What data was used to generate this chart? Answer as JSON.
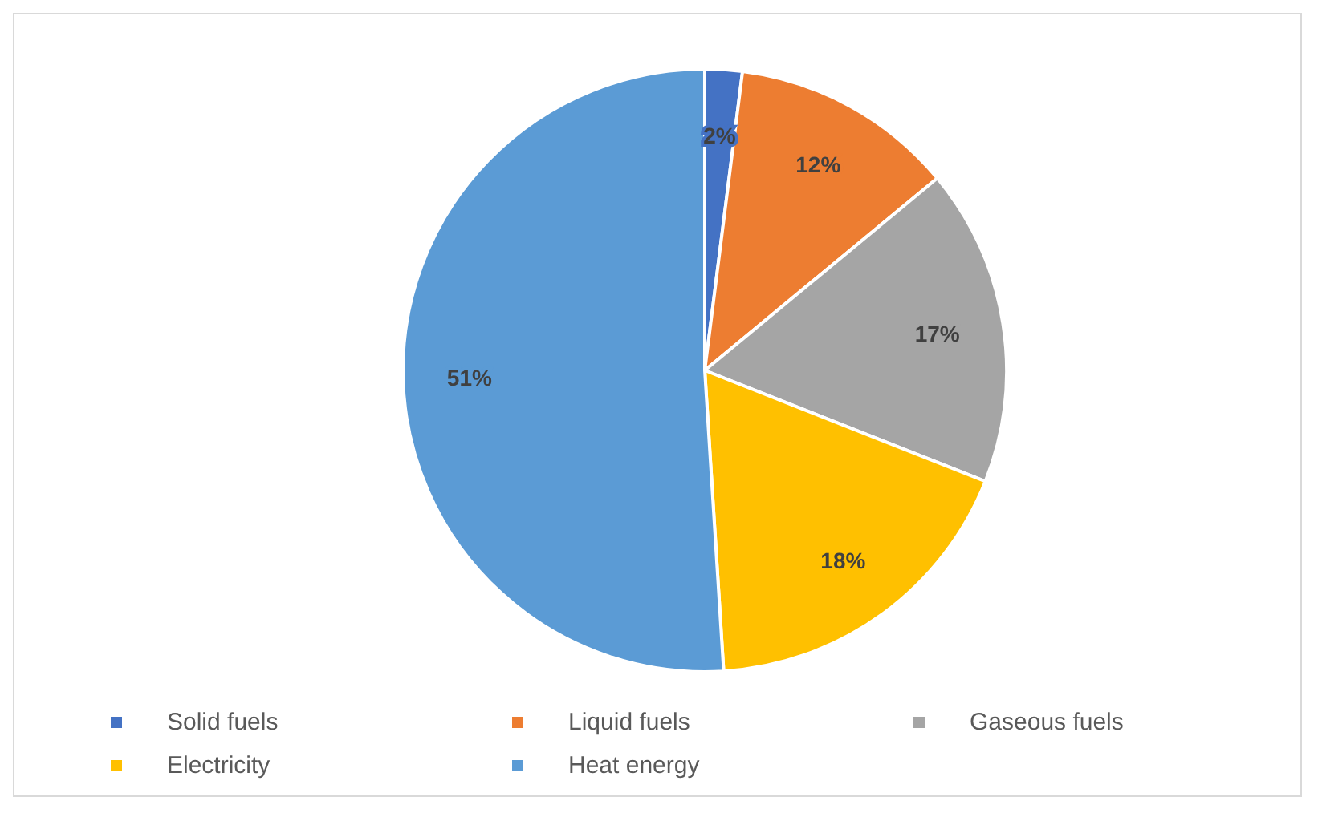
{
  "chart_data": {
    "type": "pie",
    "categories": [
      "Solid fuels",
      "Liquid fuels",
      "Gaseous fuels",
      "Electricity",
      "Heat energy"
    ],
    "values": [
      2,
      12,
      17,
      18,
      51
    ],
    "colors": [
      "#4472c4",
      "#ed7d31",
      "#a5a5a5",
      "#ffc000",
      "#5b9bd5"
    ],
    "value_labels": [
      "2%",
      "12%",
      "17%",
      "18%",
      "51%"
    ],
    "legend": "bottom"
  }
}
